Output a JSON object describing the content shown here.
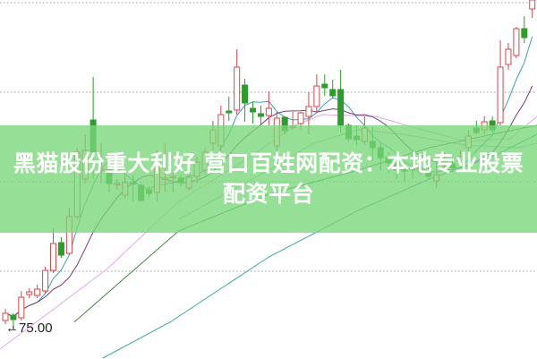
{
  "banner": {
    "title": "黑猫股份重大利好 营口百姓网配资：本地专业股票配资平台"
  },
  "chart_data": {
    "type": "candlestick",
    "ylim": [
      71.7,
      111.8
    ],
    "grid": true,
    "gridlines": [
      81.5,
      91.5,
      101.5,
      111.5
    ],
    "low_marker": {
      "label": "75.00",
      "value": 75.0
    },
    "colors": {
      "up": "#d9454a",
      "down": "#2a9d2a",
      "grid": "#999999",
      "ma5": "#3c9fb4",
      "ma10": "#7a3a7a"
    },
    "candles_ohlc": [
      [
        76.0,
        77.3,
        75.6,
        76.8
      ],
      [
        76.6,
        76.8,
        75.0,
        76.1
      ],
      [
        76.3,
        79.3,
        76.0,
        78.6
      ],
      [
        78.9,
        79.6,
        78.5,
        79.2
      ],
      [
        78.8,
        80.0,
        78.5,
        79.5
      ],
      [
        79.3,
        82.0,
        79.0,
        81.6
      ],
      [
        81.6,
        86.3,
        81.3,
        84.6
      ],
      [
        84.7,
        85.3,
        83.0,
        83.3
      ],
      [
        83.5,
        88.6,
        83.3,
        87.6
      ],
      [
        87.6,
        95.3,
        87.3,
        94.8
      ],
      [
        91.8,
        96.8,
        91.3,
        95.0
      ],
      [
        98.4,
        103.2,
        91.8,
        94.8
      ],
      [
        92.8,
        95.8,
        91.3,
        92.9
      ],
      [
        93.1,
        93.8,
        90.3,
        91.3
      ],
      [
        91.2,
        91.8,
        90.6,
        91.3
      ],
      [
        90.0,
        92.6,
        89.6,
        91.4
      ],
      [
        91.4,
        92.3,
        89.3,
        91.3
      ],
      [
        91.1,
        91.3,
        89.3,
        89.4
      ],
      [
        90.6,
        91.0,
        89.8,
        90.2
      ],
      [
        90.3,
        95.0,
        89.3,
        93.3
      ],
      [
        91.8,
        95.8,
        90.3,
        91.9
      ],
      [
        92.0,
        92.8,
        90.3,
        92.1
      ],
      [
        91.9,
        92.3,
        91.0,
        91.5
      ],
      [
        90.8,
        92.3,
        90.5,
        92.0
      ],
      [
        92.1,
        94.3,
        91.3,
        93.7
      ],
      [
        92.8,
        95.3,
        92.3,
        94.8
      ],
      [
        95.8,
        98.3,
        95.0,
        97.3
      ],
      [
        95.5,
        100.0,
        94.8,
        99.0
      ],
      [
        99.4,
        101.0,
        98.3,
        99.2
      ],
      [
        99.5,
        106.3,
        99.0,
        104.3
      ],
      [
        102.3,
        103.0,
        98.2,
        100.3
      ],
      [
        99.7,
        100.5,
        98.0,
        99.3
      ],
      [
        99.1,
        100.0,
        97.8,
        98.8
      ],
      [
        98.9,
        101.6,
        97.8,
        99.7
      ],
      [
        95.5,
        99.3,
        94.8,
        98.6
      ],
      [
        98.7,
        98.8,
        96.8,
        97.2
      ],
      [
        97.6,
        99.3,
        97.3,
        97.7
      ],
      [
        98.0,
        99.3,
        97.3,
        99.2
      ],
      [
        98.8,
        101.5,
        96.8,
        99.9
      ],
      [
        99.9,
        103.5,
        99.3,
        102.2
      ],
      [
        102.4,
        103.5,
        101.1,
        102.0
      ],
      [
        101.8,
        102.9,
        100.8,
        101.1
      ],
      [
        101.8,
        104.0,
        97.0,
        97.8
      ],
      [
        97.8,
        98.0,
        96.0,
        96.3
      ],
      [
        96.6,
        97.8,
        95.6,
        96.2
      ],
      [
        96.0,
        98.8,
        95.6,
        97.5
      ],
      [
        96.0,
        97.6,
        93.8,
        95.3
      ],
      [
        95.3,
        95.8,
        92.8,
        94.2
      ],
      [
        94.2,
        94.8,
        92.5,
        93.6
      ],
      [
        93.6,
        94.3,
        91.8,
        92.8
      ],
      [
        93.0,
        93.8,
        91.5,
        92.7
      ],
      [
        93.1,
        94.6,
        91.8,
        92.8
      ],
      [
        92.6,
        93.5,
        92.2,
        93.0
      ],
      [
        92.5,
        93.3,
        91.8,
        92.1
      ],
      [
        91.6,
        93.8,
        90.8,
        92.3
      ],
      [
        93.3,
        94.8,
        92.8,
        93.8
      ],
      [
        93.5,
        94.0,
        92.6,
        93.1
      ],
      [
        93.8,
        95.0,
        93.3,
        94.3
      ],
      [
        95.3,
        97.3,
        94.3,
        96.6
      ],
      [
        97.5,
        98.3,
        96.8,
        97.0
      ],
      [
        97.3,
        98.8,
        96.8,
        98.2
      ],
      [
        98.3,
        98.8,
        97.0,
        97.3
      ],
      [
        98.1,
        107.3,
        97.8,
        104.3
      ],
      [
        104.6,
        107.0,
        104.0,
        106.3
      ],
      [
        105.6,
        108.8,
        105.3,
        108.6
      ],
      [
        108.6,
        110.0,
        107.0,
        107.6
      ],
      [
        110.8,
        111.8,
        109.8,
        111.8
      ]
    ],
    "lines": [
      {
        "color": "#e6a6e6",
        "points": [
          [
            -0.7,
            72.8
          ],
          [
            6.1,
            77.3
          ],
          [
            12.8,
            81.8
          ],
          [
            21.7,
            89.3
          ],
          [
            30.7,
            94.3
          ],
          [
            36.3,
            97.8
          ],
          [
            39.7,
            99.0
          ],
          [
            46.4,
            98.8
          ],
          [
            51.0,
            97.6
          ],
          [
            57.6,
            96.0
          ],
          [
            63.2,
            96.3
          ],
          [
            66.6,
            98.8
          ]
        ]
      },
      {
        "color": "#b0b0b0",
        "points": [
          [
            21.7,
            87.3
          ],
          [
            33.0,
            92.8
          ],
          [
            38.6,
            95.8
          ],
          [
            44.2,
            97.3
          ],
          [
            49.8,
            96.8
          ],
          [
            57.6,
            95.6
          ],
          [
            64.3,
            95.3
          ],
          [
            66.6,
            95.8
          ]
        ]
      },
      {
        "color": "#3f8a3f",
        "points": [
          [
            8.6,
            75.8
          ],
          [
            21.7,
            86.0
          ],
          [
            33.0,
            90.1
          ],
          [
            44.2,
            92.8
          ],
          [
            53.1,
            95.3
          ],
          [
            62.1,
            97.0
          ],
          [
            66.6,
            97.8
          ]
        ]
      },
      {
        "color": "#3aa5a5",
        "points": [
          [
            12.2,
            71.8
          ],
          [
            20.6,
            75.8
          ],
          [
            33.0,
            83.1
          ],
          [
            44.2,
            88.3
          ],
          [
            53.1,
            91.8
          ],
          [
            61.0,
            94.3
          ],
          [
            66.6,
            96.8
          ]
        ]
      }
    ]
  }
}
